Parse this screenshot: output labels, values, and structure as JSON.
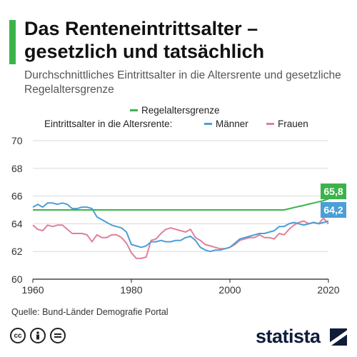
{
  "header": {
    "title": "Das Renteneintrittsalter – gesetzlich und tatsächlich",
    "subtitle": "Durchschnittliches Eintrittsalter in die Altersrente und gesetzliche Regelaltersgrenze"
  },
  "footer": {
    "source": "Quelle: Bund-Länder Demografie Portal",
    "brand": "statista",
    "license_icons": [
      "cc-icon",
      "person-icon",
      "equals-icon"
    ]
  },
  "colors": {
    "accent": "#3cb34a",
    "regel": "#3cb34a",
    "maenner": "#4a9fd6",
    "frauen": "#e0809a",
    "grid": "#d9d9d9"
  },
  "chart_data": {
    "type": "line",
    "title": "Das Renteneintrittsalter – gesetzlich und tatsächlich",
    "xlim": [
      1960,
      2020
    ],
    "ylim": [
      60,
      70
    ],
    "xticks": [
      1960,
      1980,
      2000,
      2020
    ],
    "yticks": [
      60,
      62,
      64,
      66,
      68,
      70
    ],
    "grid": true,
    "legend": {
      "placement": "top",
      "group_label": "Eintrittsalter in die Altersrente:",
      "entries": [
        "Regelaltersgrenze",
        "Männer",
        "Frauen"
      ]
    },
    "end_labels": {
      "regel": "65,8",
      "maenner": "64,2"
    },
    "series": [
      {
        "key": "regel",
        "name": "Regelaltersgrenze",
        "color": "#3cb34a",
        "x": [
          1960,
          2011,
          2012,
          2013,
          2014,
          2015,
          2016,
          2017,
          2018,
          2019,
          2020
        ],
        "y": [
          65.0,
          65.0,
          65.08,
          65.17,
          65.25,
          65.33,
          65.42,
          65.5,
          65.58,
          65.67,
          65.8
        ]
      },
      {
        "key": "maenner",
        "name": "Männer",
        "color": "#4a9fd6",
        "x": [
          1960,
          1961,
          1962,
          1963,
          1964,
          1965,
          1966,
          1967,
          1968,
          1969,
          1970,
          1971,
          1972,
          1973,
          1974,
          1975,
          1976,
          1977,
          1978,
          1979,
          1980,
          1981,
          1982,
          1983,
          1984,
          1985,
          1986,
          1987,
          1988,
          1989,
          1990,
          1991,
          1992,
          1993,
          1994,
          1995,
          1996,
          1997,
          1998,
          1999,
          2000,
          2001,
          2002,
          2003,
          2004,
          2005,
          2006,
          2007,
          2008,
          2009,
          2010,
          2011,
          2012,
          2013,
          2014,
          2015,
          2016,
          2017,
          2018,
          2019,
          2020
        ],
        "y": [
          65.2,
          65.4,
          65.2,
          65.5,
          65.5,
          65.4,
          65.5,
          65.4,
          65.1,
          65.1,
          65.2,
          65.2,
          65.1,
          64.5,
          64.3,
          64.1,
          63.9,
          63.8,
          63.7,
          63.4,
          62.5,
          62.4,
          62.3,
          62.4,
          62.7,
          62.7,
          62.8,
          62.7,
          62.7,
          62.8,
          62.8,
          63.0,
          63.1,
          62.8,
          62.3,
          62.1,
          62.0,
          62.1,
          62.1,
          62.2,
          62.3,
          62.6,
          62.9,
          63.0,
          63.1,
          63.2,
          63.3,
          63.3,
          63.4,
          63.5,
          63.8,
          63.8,
          64.0,
          64.1,
          64.0,
          63.9,
          64.0,
          64.1,
          64.0,
          64.1,
          64.2
        ]
      },
      {
        "key": "frauen",
        "name": "Frauen",
        "color": "#e0809a",
        "x": [
          1960,
          1961,
          1962,
          1963,
          1964,
          1965,
          1966,
          1967,
          1968,
          1969,
          1970,
          1971,
          1972,
          1973,
          1974,
          1975,
          1976,
          1977,
          1978,
          1979,
          1980,
          1981,
          1982,
          1983,
          1984,
          1985,
          1986,
          1987,
          1988,
          1989,
          1990,
          1991,
          1992,
          1993,
          1994,
          1995,
          1996,
          1997,
          1998,
          1999,
          2000,
          2001,
          2002,
          2003,
          2004,
          2005,
          2006,
          2007,
          2008,
          2009,
          2010,
          2011,
          2012,
          2013,
          2014,
          2015,
          2016,
          2017,
          2018,
          2019,
          2020
        ],
        "y": [
          63.9,
          63.6,
          63.5,
          63.9,
          63.8,
          63.9,
          63.9,
          63.6,
          63.3,
          63.3,
          63.3,
          63.2,
          62.7,
          63.2,
          63.0,
          63.0,
          63.2,
          63.2,
          63.0,
          62.6,
          61.9,
          61.5,
          61.5,
          61.6,
          62.8,
          62.9,
          63.3,
          63.6,
          63.7,
          63.6,
          63.5,
          63.4,
          63.6,
          63.0,
          62.8,
          62.5,
          62.4,
          62.3,
          62.2,
          62.2,
          62.3,
          62.5,
          62.8,
          62.9,
          63.0,
          63.0,
          63.2,
          63.0,
          63.0,
          62.9,
          63.3,
          63.2,
          63.6,
          63.9,
          64.1,
          64.2,
          64.0,
          64.1,
          64.0,
          64.4,
          64.0
        ]
      }
    ]
  }
}
